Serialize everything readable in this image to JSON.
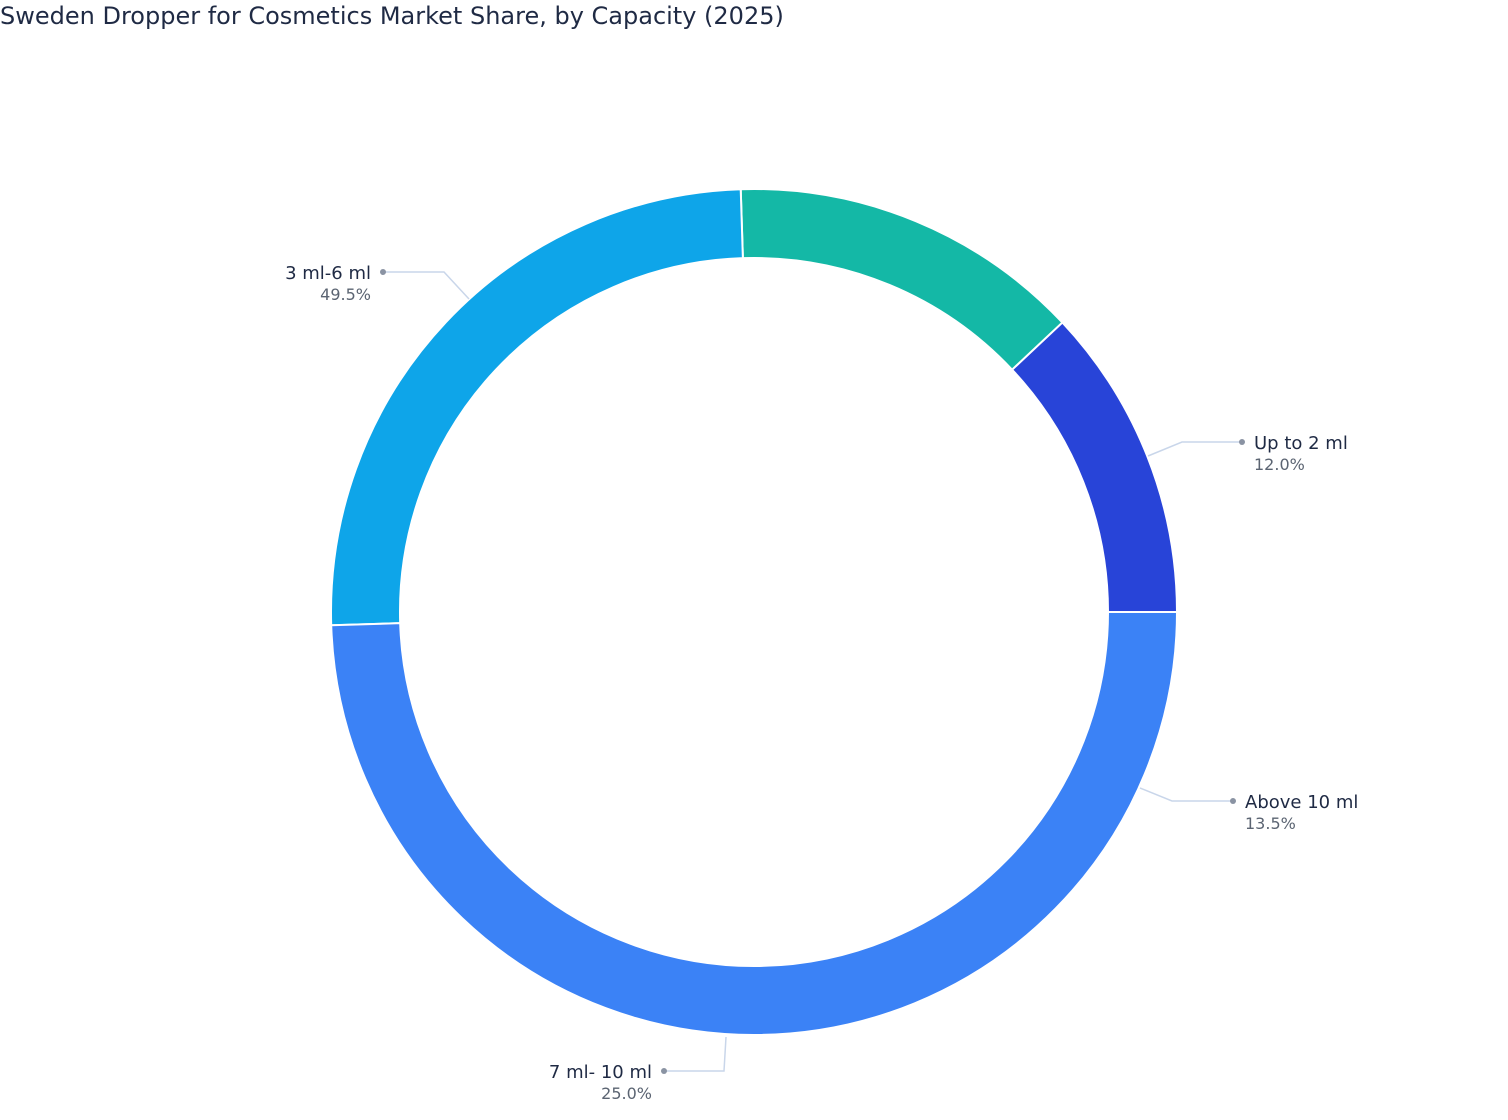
{
  "chart_data": {
    "type": "pie",
    "donut": true,
    "title": "Sweden Dropper for Cosmetics Market Share, by Capacity (2025)",
    "slices": [
      {
        "label": "Up to 2 ml",
        "value": 12.0,
        "display": "12.0%",
        "color": "#2844d8"
      },
      {
        "label": "Above 10 ml",
        "value": 13.5,
        "display": "13.5%",
        "color": "#14b8a6"
      },
      {
        "label": "7 ml- 10 ml",
        "value": 25.0,
        "display": "25.0%",
        "color": "#0ea5e9"
      },
      {
        "label": "3 ml-6 ml",
        "value": 49.5,
        "display": "49.5%",
        "color": "#3b82f6"
      }
    ],
    "legend": "none"
  }
}
